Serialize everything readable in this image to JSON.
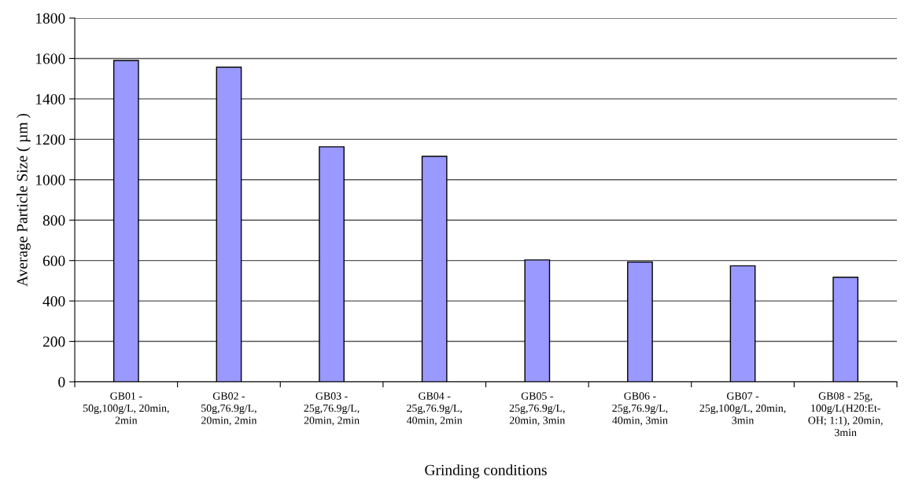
{
  "chart_data": {
    "type": "bar",
    "xlabel": "Grinding conditions",
    "ylabel": "Average Particle Size ( µm )",
    "categories": [
      "GB01 -\n50g,100g/L, 20min,\n2min",
      "GB02 -\n50g,76.9g/L,\n20min, 2min",
      "GB03 -\n25g,76.9g/L,\n20min, 2min",
      "GB04 -\n25g,76.9g/L,\n40min, 2min",
      "GB05 -\n25g,76.9g/L,\n20min, 3min",
      "GB06 -\n25g,76.9g/L,\n40min, 3min",
      "GB07 -\n25g,100g/L, 20min,\n3min",
      "GB08 - 25g,\n100g/L(H20:Et-\nOH; 1:1), 20min,\n3min"
    ],
    "values": [
      1590,
      1557,
      1163,
      1116,
      603,
      593,
      574,
      517
    ],
    "color": "#9999ff",
    "ylim": [
      0,
      1800
    ],
    "yticks": [
      0,
      200,
      400,
      600,
      800,
      1000,
      1200,
      1400,
      1600,
      1800
    ],
    "grid": "y",
    "legend": false
  }
}
